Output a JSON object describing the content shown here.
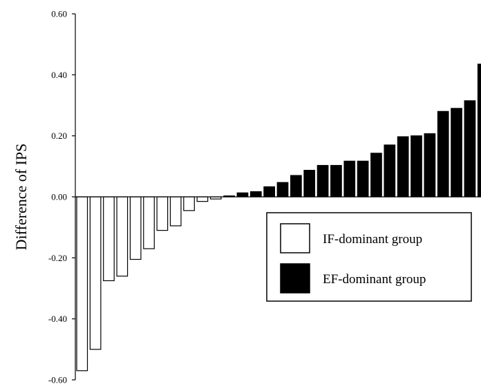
{
  "chart_data": {
    "type": "bar",
    "title": "",
    "xlabel": "",
    "ylabel": "Difference of IPS",
    "ylim": [
      -0.6,
      0.6
    ],
    "yticks": [
      "0.60",
      "0.40",
      "0.20",
      "0.00",
      "-0.20",
      "-0.40",
      "-0.60"
    ],
    "grid": false,
    "legend_position": "center-right",
    "series": [
      {
        "name": "IF-dominant group",
        "color": "#ffffff",
        "values": [
          -0.57,
          -0.5,
          -0.275,
          -0.26,
          -0.205,
          -0.17,
          -0.11,
          -0.095,
          -0.045,
          -0.015,
          -0.007
        ]
      },
      {
        "name": "EF-dominant group",
        "color": "#000000",
        "values": [
          0.003,
          0.013,
          0.017,
          0.033,
          0.047,
          0.07,
          0.087,
          0.103,
          0.103,
          0.117,
          0.117,
          0.143,
          0.17,
          0.197,
          0.2,
          0.207,
          0.28,
          0.29,
          0.315,
          0.435
        ]
      }
    ]
  }
}
